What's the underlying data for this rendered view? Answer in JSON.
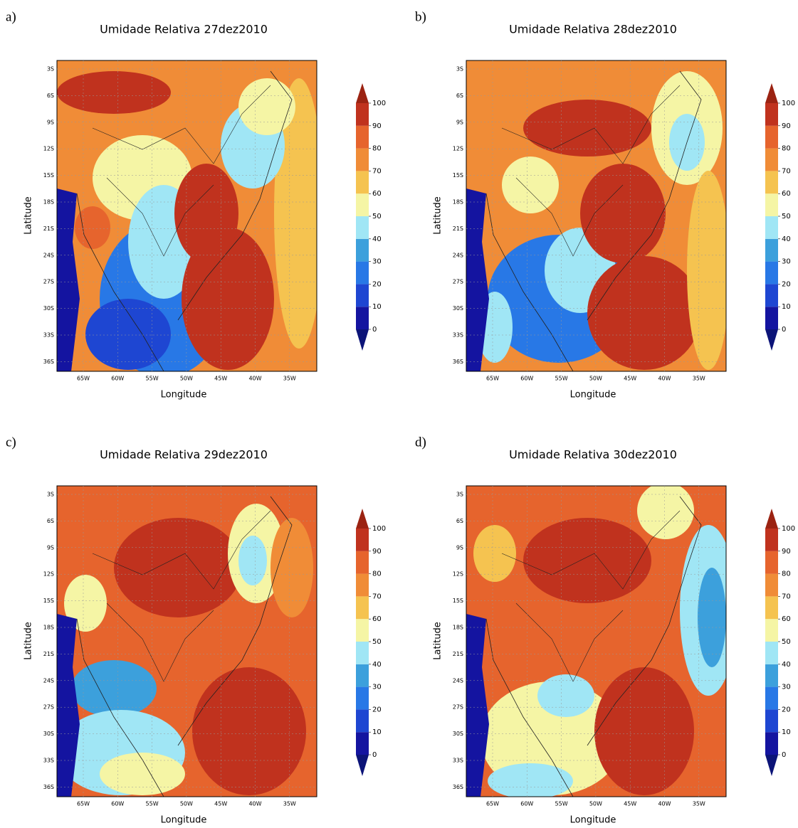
{
  "figure": {
    "panels": [
      {
        "label": "a)",
        "title": "Umidade Relativa 27dez2010"
      },
      {
        "label": "b)",
        "title": "Umidade Relativa 28dez2010"
      },
      {
        "label": "c)",
        "title": "Umidade Relativa 29dez2010"
      },
      {
        "label": "d)",
        "title": "Umidade Relativa 30dez2010"
      }
    ],
    "x_label": "Longitude",
    "y_label": "Latitude",
    "latitude_ticks": [
      "3S",
      "6S",
      "9S",
      "12S",
      "15S",
      "18S",
      "21S",
      "24S",
      "27S",
      "30S",
      "33S",
      "36S"
    ],
    "longitude_ticks": [
      "65W",
      "60W",
      "55W",
      "50W",
      "45W",
      "40W",
      "35W"
    ],
    "colorbar": {
      "levels": [
        0,
        10,
        20,
        30,
        40,
        50,
        60,
        70,
        80,
        90,
        100
      ],
      "colors": [
        "#0c1478",
        "#1414a0",
        "#1e46d2",
        "#2878e6",
        "#3ca0dc",
        "#a0e6f5",
        "#f5f5a5",
        "#f5c350",
        "#f08c37",
        "#e6642d",
        "#c0321e",
        "#9b2312"
      ]
    }
  }
}
